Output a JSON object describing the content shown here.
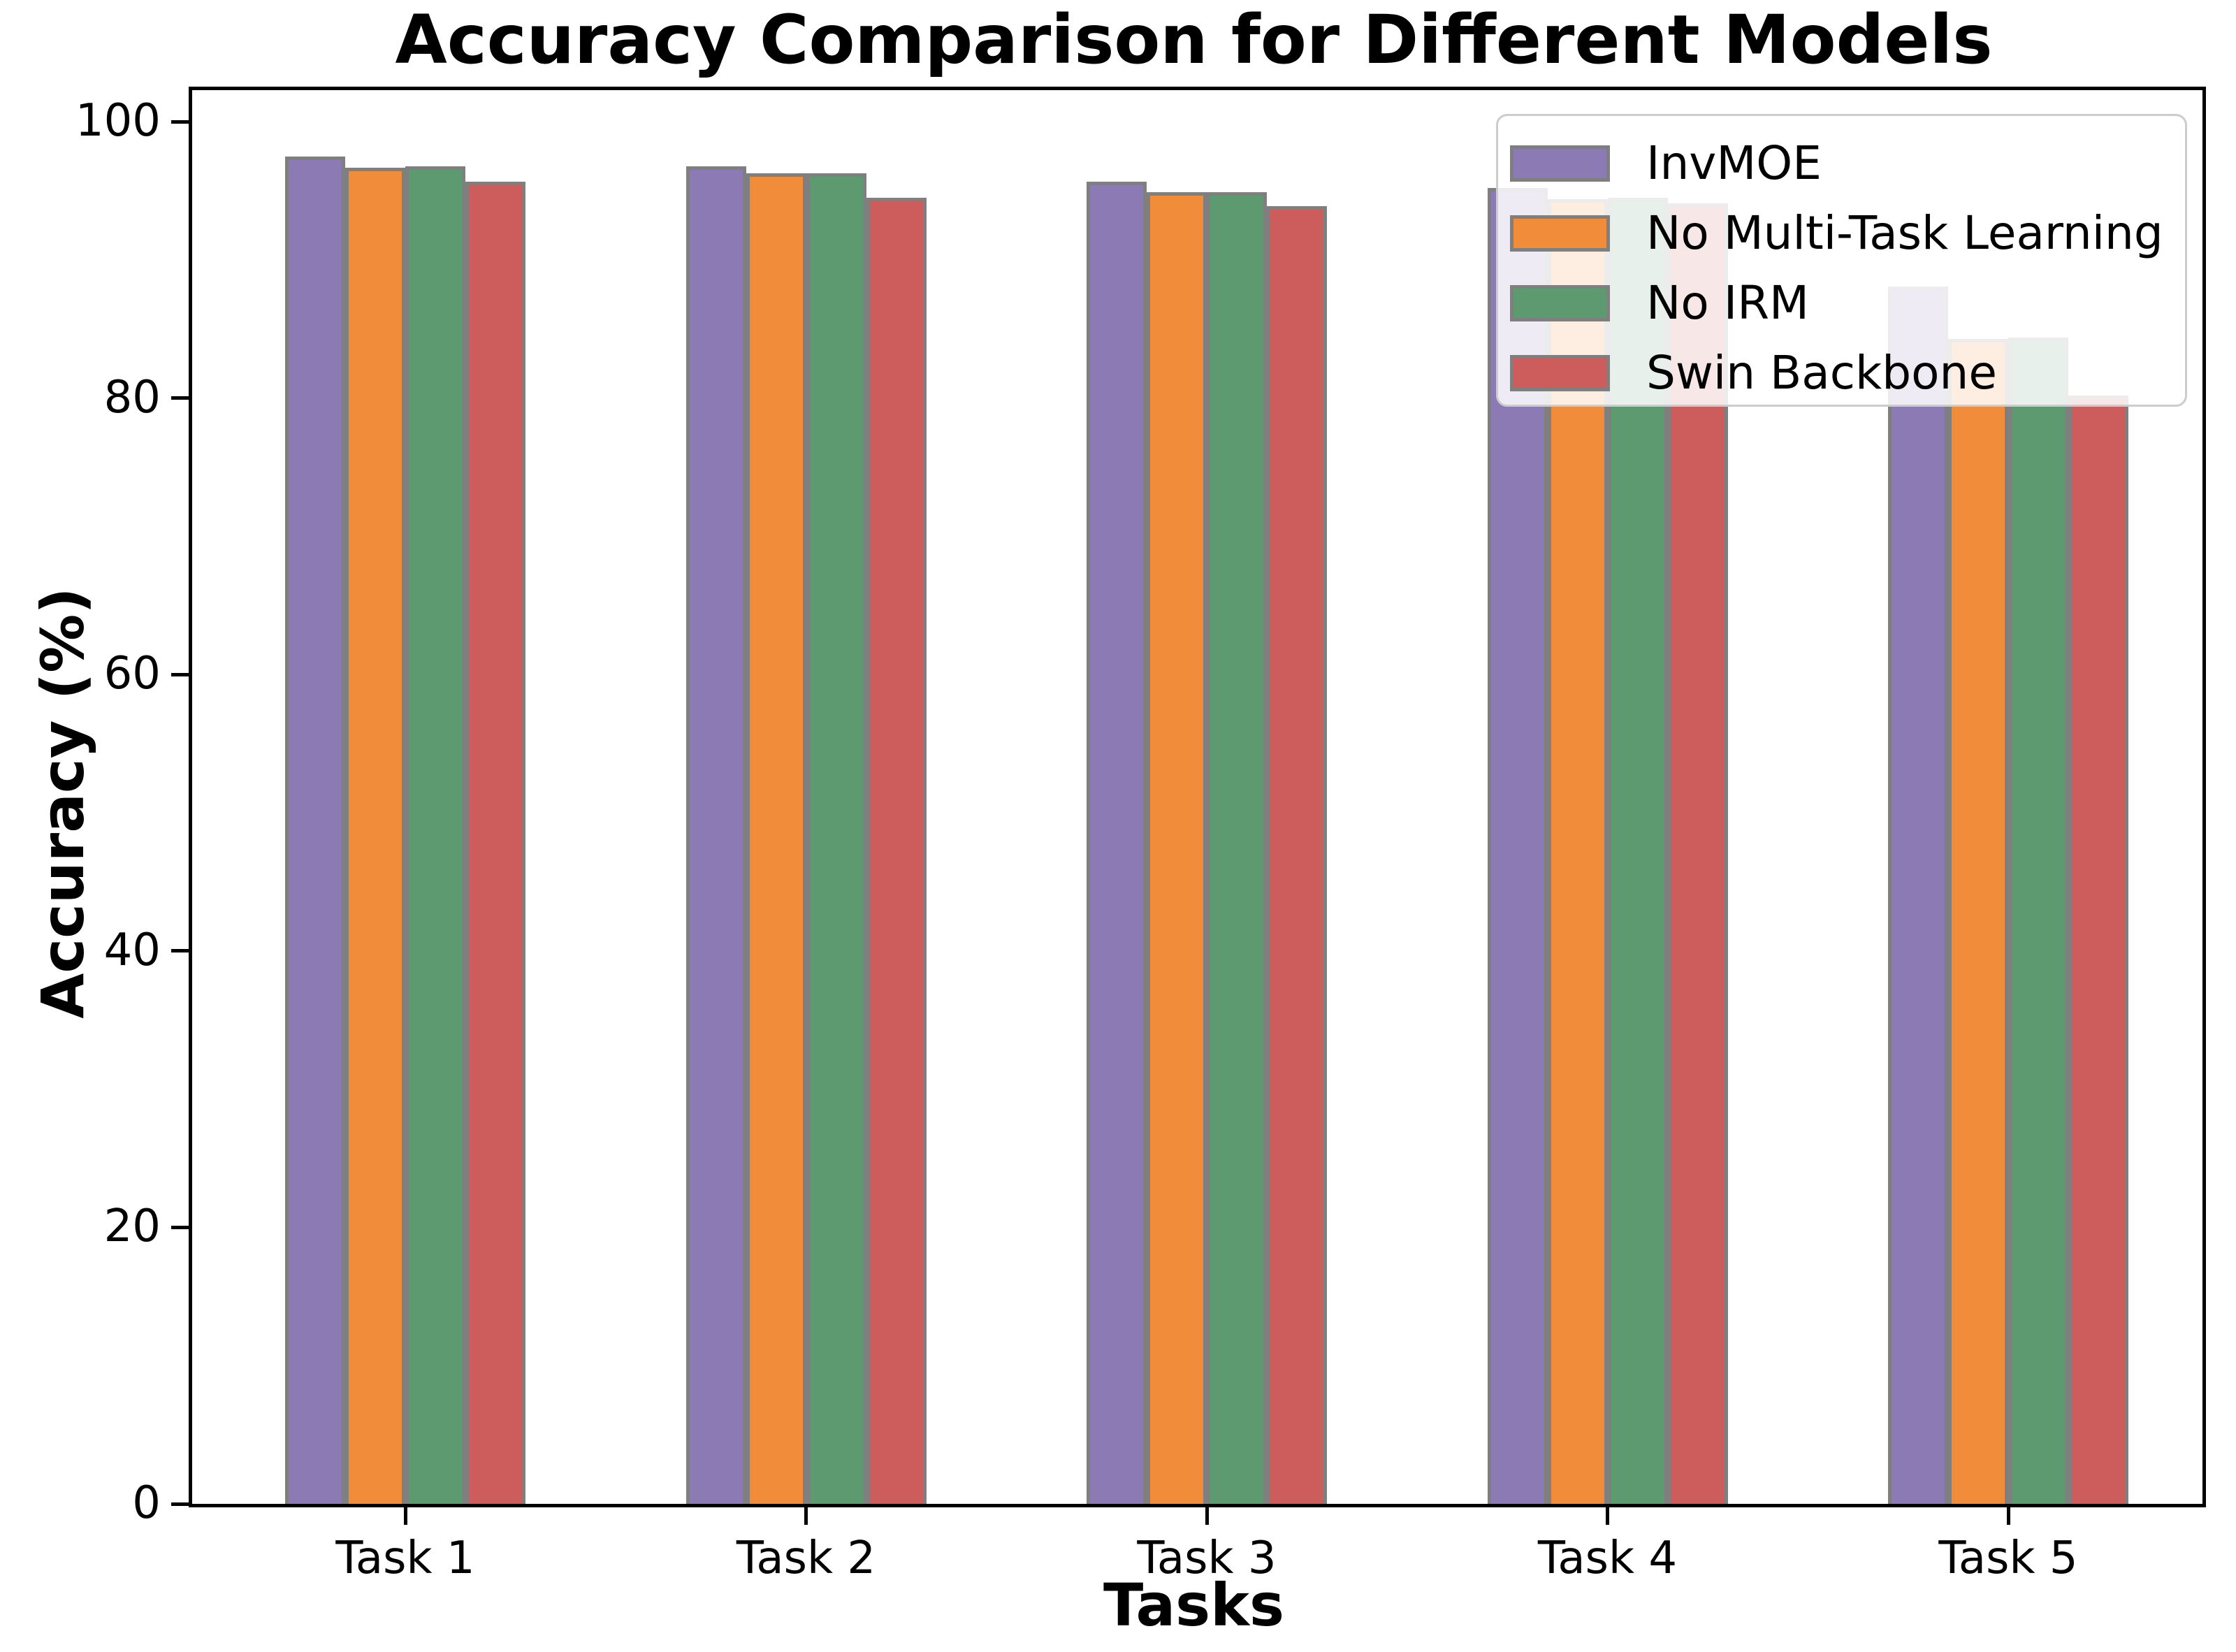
{
  "chart_data": {
    "type": "bar",
    "title": "Accuracy Comparison for Different Models",
    "xlabel": "Tasks",
    "ylabel": "Accuracy (%)",
    "categories": [
      "Task 1",
      "Task 2",
      "Task 3",
      "Task 4",
      "Task 5"
    ],
    "series": [
      {
        "name": "InvMOE",
        "color": "#8c7ab4",
        "values": [
          97.5,
          96.8,
          95.7,
          95.2,
          88.1
        ]
      },
      {
        "name": "No Multi-Task Learning",
        "color": "#f18d3a",
        "values": [
          96.7,
          96.3,
          94.9,
          94.4,
          84.3
        ]
      },
      {
        "name": "No IRM",
        "color": "#5d9a70",
        "values": [
          96.8,
          96.3,
          94.9,
          94.5,
          84.4
        ]
      },
      {
        "name": "Swin Backbone",
        "color": "#cd5d5d",
        "values": [
          95.7,
          94.5,
          93.9,
          94.1,
          80.2
        ]
      }
    ],
    "yticks": [
      0,
      20,
      40,
      60,
      80,
      100
    ],
    "ylim": [
      0,
      102.3
    ],
    "grid": false,
    "legend_position": "upper right",
    "bar_edge_color": "#7f7f7f",
    "axis_color": "#000000"
  }
}
